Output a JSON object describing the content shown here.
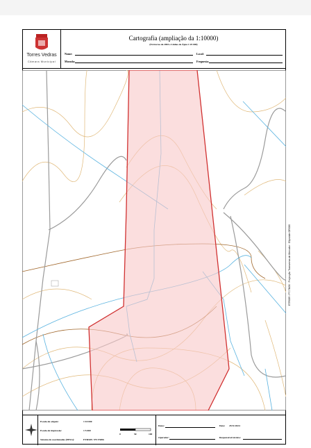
{
  "header": {
    "brand": "Torres Vedras",
    "municipality": "Câmara Municipal",
    "title": "Cartografia (ampliação da 1:10000)",
    "subtitle": "(Extractos de 2004 e Linhas de Água 1:25 000)",
    "fields": {
      "name": "Nome:",
      "local": "Local:",
      "address": "Morada:",
      "parish": "Freguesia:"
    }
  },
  "map": {
    "side_note": "ETRS89 / PT-TM06 · Projecção Transversa de Mercator · Elipsóide GRS80"
  },
  "footer": {
    "origin_scale_label": "Escala de origem:",
    "origin_scale": "1:10 000",
    "print_scale_label": "Escala de impressão:",
    "print_scale": "1:5 000",
    "crs_label": "Sistema de coordenadas (EPSG):",
    "crs": "ETRS89 / PT-TM06",
    "scalebar": [
      "0",
      "50",
      "100"
    ],
    "date_label": "Data:",
    "date": "29/11/2024",
    "operator_label": "Operador:",
    "responsible_label": "Responsável técnico:",
    "owner_label": "Dono:"
  }
}
